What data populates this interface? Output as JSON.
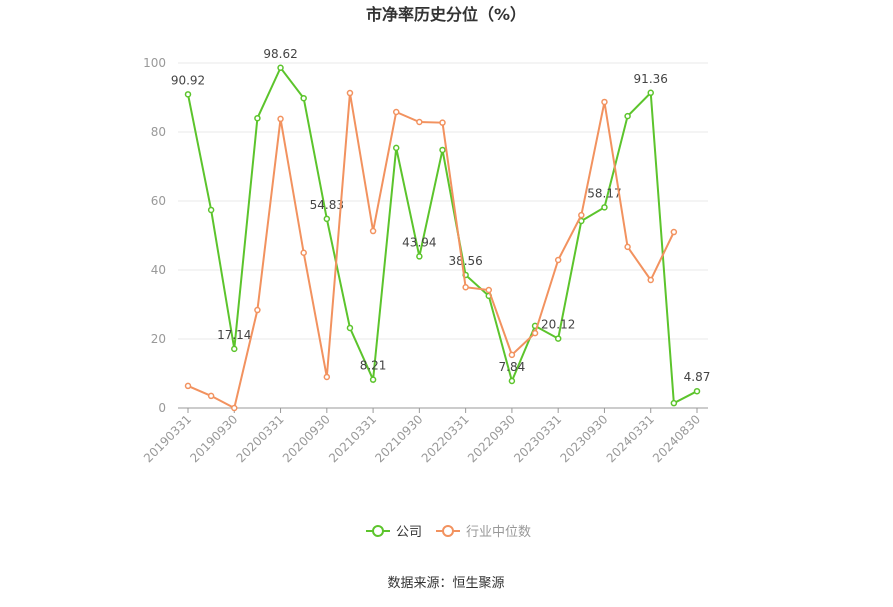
{
  "chart_data": {
    "type": "line",
    "title": "市净率历史分位（%）",
    "source": "数据来源：恒生聚源",
    "categories": [
      "20190331",
      null,
      "20190930",
      null,
      "20200331",
      null,
      "20200930",
      null,
      "20210331",
      null,
      "20210930",
      null,
      "20220331",
      null,
      "20220930",
      null,
      "20230331",
      null,
      "20230930",
      null,
      "20240331",
      null,
      "20240830"
    ],
    "series": [
      {
        "name": "公司",
        "color": "#5cc42c",
        "values": [
          90.92,
          57.4,
          17.14,
          84,
          98.62,
          89.8,
          54.83,
          23.2,
          8.21,
          75.4,
          43.94,
          74.8,
          38.56,
          32.5,
          7.84,
          23.8,
          20.12,
          54.2,
          58.17,
          84.6,
          91.36,
          1.4,
          4.87
        ],
        "value_labels": [
          "90.92",
          null,
          "17.14",
          null,
          "98.62",
          null,
          "54.83",
          null,
          "8.21",
          null,
          "43.94",
          null,
          "38.56",
          null,
          "7.84",
          null,
          "20.12",
          null,
          "58.17",
          null,
          "91.36",
          null,
          "4.87"
        ]
      },
      {
        "name": "行业中位数",
        "color": "#f2925f",
        "values": [
          6.4,
          3.5,
          0,
          28.4,
          83.8,
          45,
          9,
          91.3,
          51.3,
          85.8,
          82.9,
          82.7,
          35,
          34.2,
          15.4,
          21.7,
          42.9,
          55.9,
          88.7,
          46.7,
          37.1,
          51,
          null
        ]
      }
    ],
    "ylim": [
      0,
      100
    ],
    "yticks": [
      0,
      20,
      40,
      60,
      80,
      100
    ],
    "grid": true,
    "legend": "bottom"
  }
}
